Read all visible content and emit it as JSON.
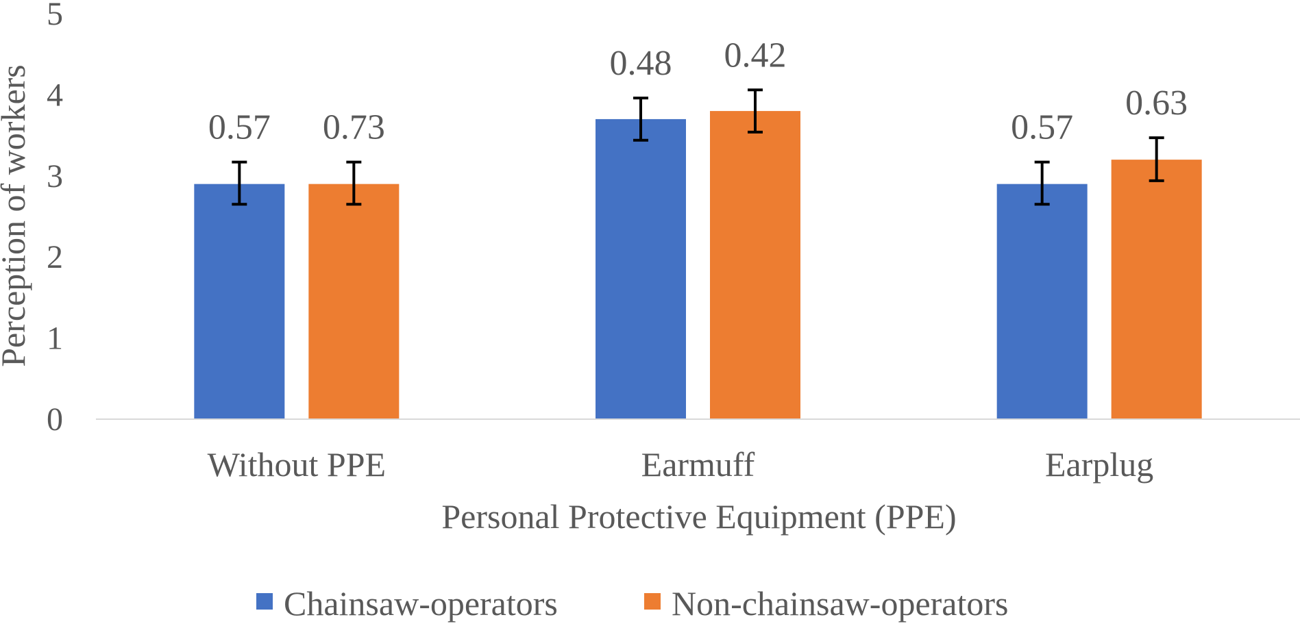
{
  "chart_data": {
    "type": "bar",
    "xlabel": "Personal Protective Equipment (PPE)",
    "ylabel": "Perception of workers",
    "ylim": [
      0,
      5
    ],
    "yticks": [
      "0",
      "1",
      "2",
      "3",
      "4",
      "5"
    ],
    "categories": [
      "Without PPE",
      "Earmuff",
      "Earplug"
    ],
    "series": [
      {
        "name": "Chainsaw-operators",
        "color": "#4472C4",
        "values": [
          2.9,
          3.7,
          2.9
        ],
        "error_labels": [
          "0.57",
          "0.48",
          "0.57"
        ],
        "error_low": [
          2.65,
          3.44,
          2.65
        ],
        "error_high": [
          3.17,
          3.96,
          3.17
        ]
      },
      {
        "name": "Non-chainsaw-operators",
        "color": "#ED7D31",
        "values": [
          2.9,
          3.8,
          3.2
        ],
        "error_labels": [
          "0.73",
          "0.42",
          "0.63"
        ],
        "error_low": [
          2.65,
          3.54,
          2.94
        ],
        "error_high": [
          3.17,
          4.06,
          3.47
        ]
      }
    ],
    "legend_position": "bottom-center",
    "grid": false
  }
}
